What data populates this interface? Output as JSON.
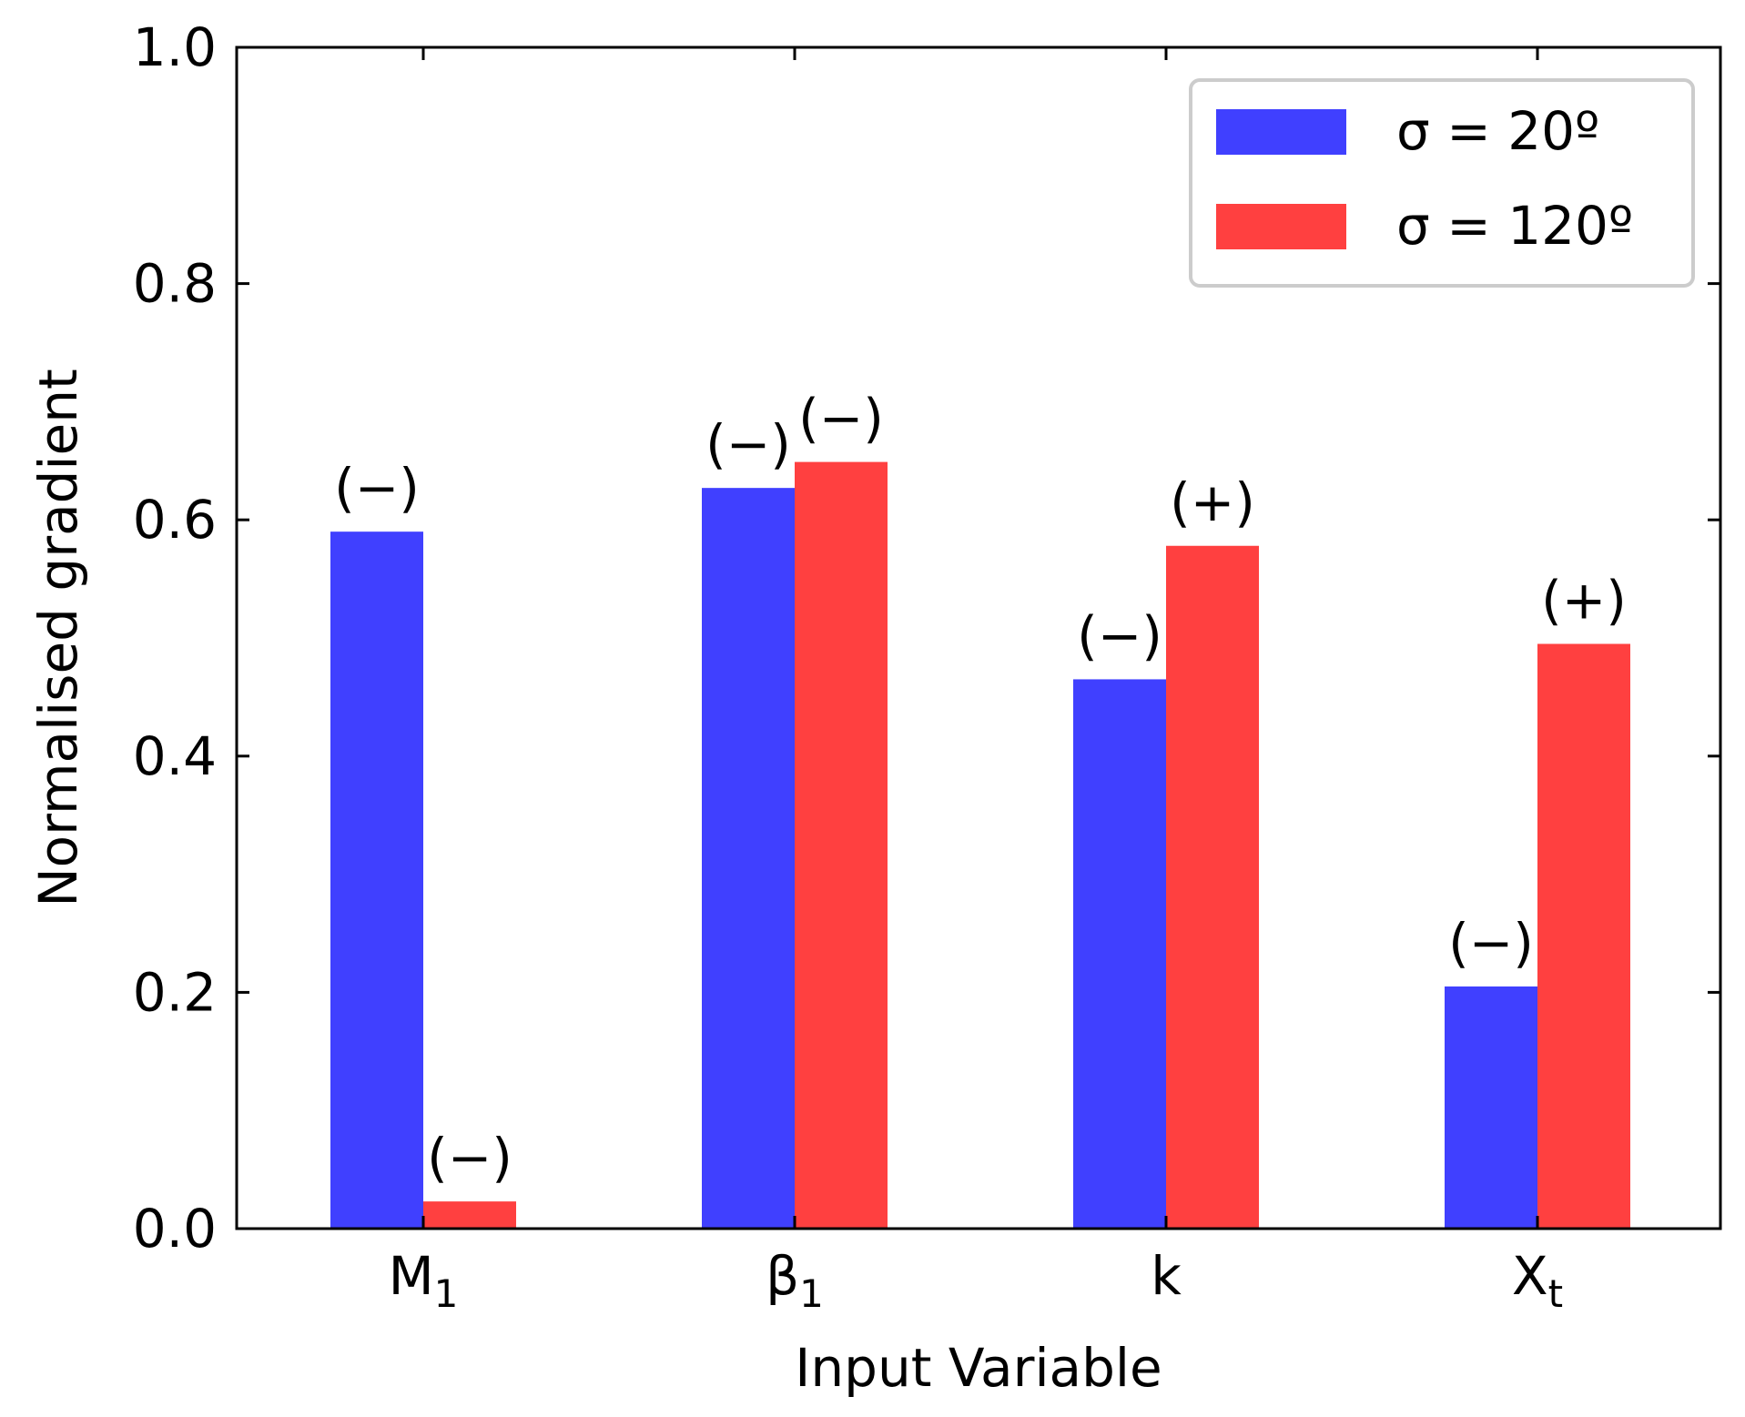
{
  "chart_data": {
    "type": "bar",
    "title": "",
    "xlabel": "Input Variable",
    "ylabel": "Normalised gradient",
    "ylim": [
      0,
      1.0
    ],
    "yticks": [
      "0.0",
      "0.2",
      "0.4",
      "0.6",
      "0.8",
      "1.0"
    ],
    "categories": [
      {
        "base": "M",
        "sub": "1"
      },
      {
        "base": "β",
        "sub": "1"
      },
      {
        "base": "k",
        "sub": ""
      },
      {
        "base": "X",
        "sub": "t"
      }
    ],
    "series": [
      {
        "name": "σ = 20º",
        "color": "#4040ff",
        "values": [
          0.59,
          0.627,
          0.465,
          0.205
        ],
        "labels": [
          "(−)",
          "(−)",
          "(−)",
          "(−)"
        ]
      },
      {
        "name": "σ = 120º",
        "color": "#ff4040",
        "values": [
          0.023,
          0.649,
          0.578,
          0.495
        ],
        "labels": [
          "(−)",
          "(−)",
          "(+)",
          "(+)"
        ]
      }
    ],
    "legend_position": "top-right",
    "grid": false
  }
}
